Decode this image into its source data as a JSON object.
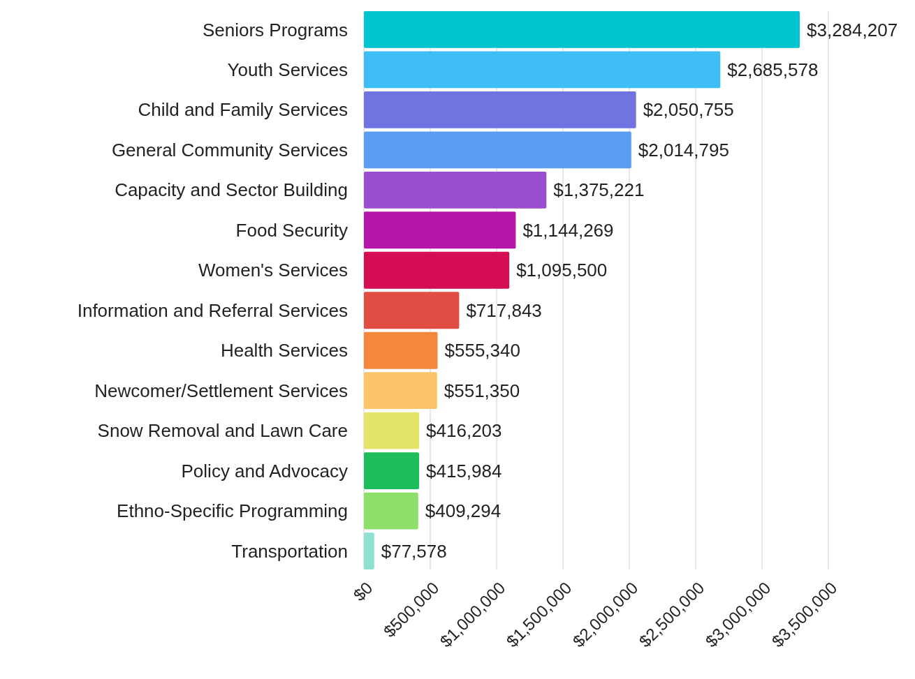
{
  "chart_data": {
    "type": "bar",
    "orientation": "horizontal",
    "categories": [
      "Seniors Programs",
      "Youth Services",
      "Child and Family Services",
      "General Community Services",
      "Capacity and Sector Building",
      "Food Security",
      "Women's Services",
      "Information and Referral Services",
      "Health Services",
      "Newcomer/Settlement Services",
      "Snow Removal and Lawn Care",
      "Policy and Advocacy",
      "Ethno-Specific Programming",
      "Transportation"
    ],
    "values": [
      3284207,
      2685578,
      2050755,
      2014795,
      1375221,
      1144269,
      1095500,
      717843,
      555340,
      551350,
      416203,
      415984,
      409294,
      77578
    ],
    "value_labels": [
      "$3,284,207",
      "$2,685,578",
      "$2,050,755",
      "$2,014,795",
      "$1,375,221",
      "$1,144,269",
      "$1,095,500",
      "$717,843",
      "$555,340",
      "$551,350",
      "$416,203",
      "$415,984",
      "$409,294",
      "$77,578"
    ],
    "colors": [
      "#00c4cf",
      "#3ebef5",
      "#6f74e0",
      "#5b9cf5",
      "#9b4fd0",
      "#b515a8",
      "#d50d55",
      "#e04d43",
      "#f5873d",
      "#fbc46a",
      "#e3e56b",
      "#1cbd5a",
      "#8ee06a",
      "#8ee0d0"
    ],
    "xlim": [
      0,
      3500000
    ],
    "xticks": [
      {
        "value": 0,
        "label": "$0"
      },
      {
        "value": 500000,
        "label": "$500,000"
      },
      {
        "value": 1000000,
        "label": "$1,000,000"
      },
      {
        "value": 1500000,
        "label": "$1,500,000"
      },
      {
        "value": 2000000,
        "label": "$2,000,000"
      },
      {
        "value": 2500000,
        "label": "$2,500,000"
      },
      {
        "value": 3000000,
        "label": "$3,000,000"
      },
      {
        "value": 3500000,
        "label": "$3,500,000"
      }
    ],
    "grid": "x"
  }
}
